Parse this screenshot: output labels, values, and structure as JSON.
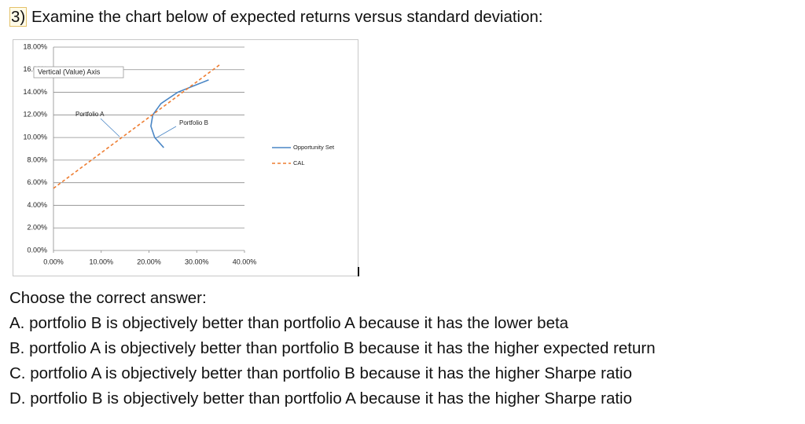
{
  "question_number": "3)",
  "question": "Examine the chart below of expected returns versus standard deviation:",
  "chart_data": {
    "type": "line",
    "xlim": [
      0,
      40
    ],
    "ylim": [
      0,
      18
    ],
    "xticks": [
      {
        "value": 0,
        "label": "0.00%"
      },
      {
        "value": 10,
        "label": "10.00%"
      },
      {
        "value": 20,
        "label": "20.00%"
      },
      {
        "value": 30,
        "label": "30.00%"
      },
      {
        "value": 40,
        "label": "40.00%"
      }
    ],
    "yticks": [
      {
        "value": 0,
        "label": "0.00%"
      },
      {
        "value": 2,
        "label": "2.00%"
      },
      {
        "value": 4,
        "label": "4.00%"
      },
      {
        "value": 6,
        "label": "6.00%"
      },
      {
        "value": 8,
        "label": "8.00%"
      },
      {
        "value": 10,
        "label": "10.00%"
      },
      {
        "value": 12,
        "label": "12.00%"
      },
      {
        "value": 14,
        "label": "14.00%"
      },
      {
        "value": 16,
        "label": "16.00%"
      },
      {
        "value": 18,
        "label": "18.00%"
      }
    ],
    "grid": true,
    "legend": "right",
    "series": [
      {
        "name": "Opportunity Set",
        "color": "#4a86c5",
        "dashed": false,
        "x": [
          23.1,
          21.2,
          20.4,
          20.8,
          22.5,
          26,
          32.5
        ],
        "values": [
          9.1,
          10,
          11,
          12,
          13,
          14,
          15.1
        ]
      },
      {
        "name": "CAL",
        "color": "#ee7d31",
        "dashed": true,
        "x": [
          0,
          35
        ],
        "values": [
          5.5,
          16.5
        ]
      }
    ],
    "annotations": [
      "Portfolio A",
      "Portfolio B"
    ],
    "tooltip": "Vertical (Value) Axis"
  },
  "prompt": "Choose the correct answer:",
  "choices": [
    "A. portfolio B is objectively better than portfolio A because it has the lower beta",
    "B. portfolio A is objectively better than portfolio B because it has the higher expected return",
    "C. portfolio A is objectively better than portfolio B because it has the higher Sharpe ratio",
    "D. portfolio B is objectively better than portfolio A because it has the higher Sharpe ratio"
  ]
}
